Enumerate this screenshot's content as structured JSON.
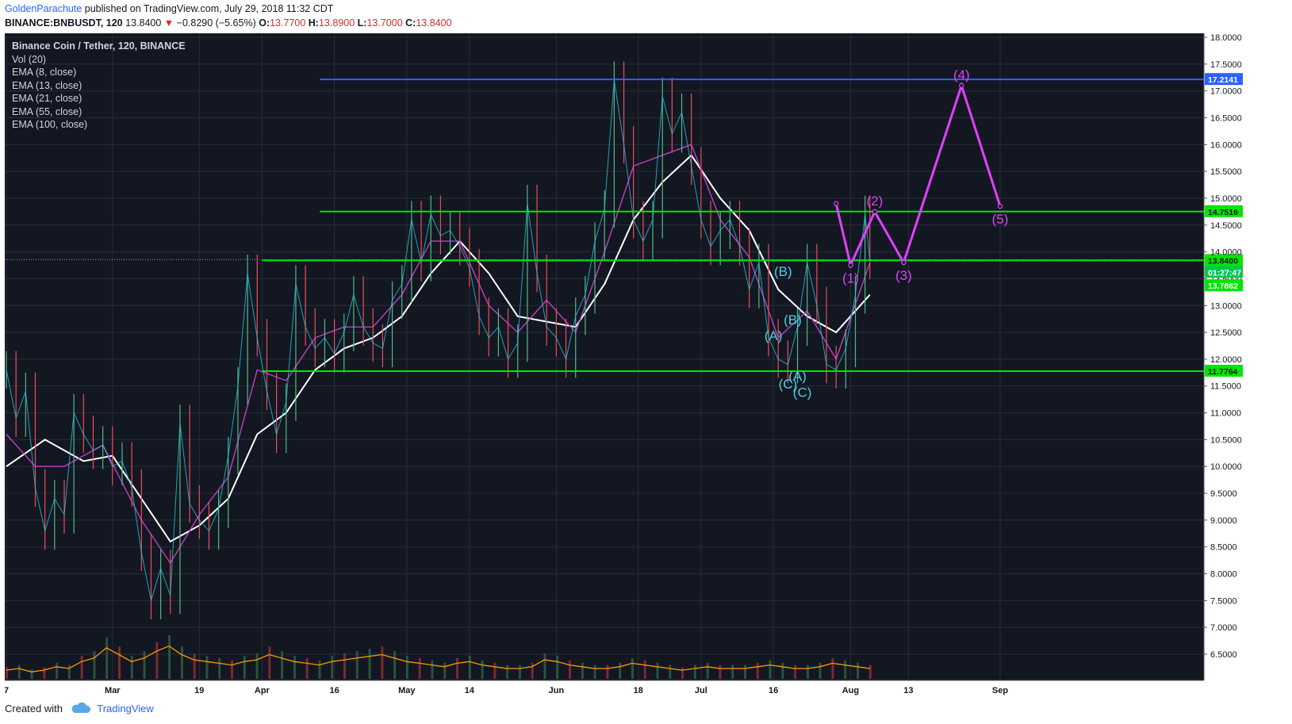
{
  "header": {
    "author": "GoldenParachute",
    "published": "published on TradingView.com, July 29, 2018 11:32 CDT",
    "symbol": "BINANCE:BNBUSDT, 120",
    "last": "13.8400",
    "change_arrow": "▼",
    "change": "−0.8290 (−5.65%)",
    "o_label": "O:",
    "o": "13.7700",
    "h_label": "H:",
    "h": "13.8900",
    "l_label": "L:",
    "l": "13.7000",
    "c_label": "C:",
    "c": "13.8400"
  },
  "legend": {
    "title": "Binance Coin / Tether, 120, BINANCE",
    "items": [
      "Vol (20)",
      "EMA (8, close)",
      "EMA (13, close)",
      "EMA (21, close)",
      "EMA (55, close)",
      "EMA (100, close)"
    ]
  },
  "footer": {
    "created_with": "Created with",
    "brand": "TradingView"
  },
  "colors": {
    "background": "#131722",
    "grid": "#2a2e39",
    "axis_text": "#d1d4dc",
    "level_green": "#00e600",
    "level_blue": "#2962ff",
    "wave_magenta": "#e040fb",
    "wave_cyan": "#4dd0e1",
    "ema_white": "#ffffff",
    "ema_magenta": "#c040c0",
    "volume_line": "#ff9800"
  },
  "chart_data": {
    "type": "line",
    "y_scale": "linear",
    "ylim": [
      6.5,
      18.0
    ],
    "yticks": [
      "18.0000",
      "17.5000",
      "17.0000",
      "16.5000",
      "16.0000",
      "15.5000",
      "15.0000",
      "14.5000",
      "14.0000",
      "13.5000",
      "13.0000",
      "12.5000",
      "12.0000",
      "11.5000",
      "11.0000",
      "10.5000",
      "10.0000",
      "9.5000",
      "9.0000",
      "8.5000",
      "8.0000",
      "7.5000",
      "7.0000",
      "6.5000"
    ],
    "xticks": [
      {
        "label": "7",
        "date": "2018-02-07"
      },
      {
        "label": "Mar",
        "date": "2018-03-01"
      },
      {
        "label": "19",
        "date": "2018-03-19"
      },
      {
        "label": "Apr",
        "date": "2018-04-01"
      },
      {
        "label": "16",
        "date": "2018-04-16"
      },
      {
        "label": "May",
        "date": "2018-05-01"
      },
      {
        "label": "14",
        "date": "2018-05-14"
      },
      {
        "label": "Jun",
        "date": "2018-06-01"
      },
      {
        "label": "18",
        "date": "2018-06-18"
      },
      {
        "label": "Jul",
        "date": "2018-07-01"
      },
      {
        "label": "16",
        "date": "2018-07-16"
      },
      {
        "label": "Aug",
        "date": "2018-08-01"
      },
      {
        "label": "13",
        "date": "2018-08-13"
      },
      {
        "label": "Sep",
        "date": "2018-09-01"
      }
    ],
    "price": {
      "name": "BNBUSDT",
      "points": [
        [
          "2018-02-07",
          11.8
        ],
        [
          "2018-02-09",
          10.9
        ],
        [
          "2018-02-11",
          11.4
        ],
        [
          "2018-02-13",
          9.6
        ],
        [
          "2018-02-15",
          8.8
        ],
        [
          "2018-02-17",
          9.4
        ],
        [
          "2018-02-19",
          9.1
        ],
        [
          "2018-02-21",
          11.0
        ],
        [
          "2018-02-23",
          10.6
        ],
        [
          "2018-02-25",
          10.3
        ],
        [
          "2018-02-27",
          10.4
        ],
        [
          "2018-03-01",
          10.0
        ],
        [
          "2018-03-03",
          10.1
        ],
        [
          "2018-03-05",
          9.6
        ],
        [
          "2018-03-07",
          8.4
        ],
        [
          "2018-03-09",
          7.5
        ],
        [
          "2018-03-11",
          8.1
        ],
        [
          "2018-03-13",
          7.6
        ],
        [
          "2018-03-15",
          10.8
        ],
        [
          "2018-03-17",
          9.3
        ],
        [
          "2018-03-19",
          9.0
        ],
        [
          "2018-03-21",
          8.8
        ],
        [
          "2018-03-23",
          9.2
        ],
        [
          "2018-03-25",
          10.2
        ],
        [
          "2018-03-27",
          11.5
        ],
        [
          "2018-03-29",
          13.6
        ],
        [
          "2018-03-31",
          12.4
        ],
        [
          "2018-04-02",
          11.4
        ],
        [
          "2018-04-04",
          10.6
        ],
        [
          "2018-04-06",
          11.2
        ],
        [
          "2018-04-08",
          13.4
        ],
        [
          "2018-04-10",
          12.6
        ],
        [
          "2018-04-12",
          12.2
        ],
        [
          "2018-04-14",
          12.4
        ],
        [
          "2018-04-16",
          12.1
        ],
        [
          "2018-04-18",
          12.5
        ],
        [
          "2018-04-20",
          13.2
        ],
        [
          "2018-04-22",
          12.6
        ],
        [
          "2018-04-24",
          12.3
        ],
        [
          "2018-04-26",
          12.2
        ],
        [
          "2018-04-28",
          13.1
        ],
        [
          "2018-04-30",
          13.4
        ],
        [
          "2018-05-02",
          14.6
        ],
        [
          "2018-05-04",
          13.8
        ],
        [
          "2018-05-06",
          14.7
        ],
        [
          "2018-05-08",
          14.3
        ],
        [
          "2018-05-10",
          14.4
        ],
        [
          "2018-05-12",
          14.1
        ],
        [
          "2018-05-14",
          13.7
        ],
        [
          "2018-05-16",
          12.8
        ],
        [
          "2018-05-18",
          12.4
        ],
        [
          "2018-05-20",
          12.6
        ],
        [
          "2018-05-22",
          12.0
        ],
        [
          "2018-05-24",
          12.3
        ],
        [
          "2018-05-26",
          14.9
        ],
        [
          "2018-05-28",
          13.6
        ],
        [
          "2018-05-30",
          12.6
        ],
        [
          "2018-06-01",
          12.4
        ],
        [
          "2018-06-03",
          12.0
        ],
        [
          "2018-06-05",
          12.8
        ],
        [
          "2018-06-07",
          13.2
        ],
        [
          "2018-06-09",
          14.2
        ],
        [
          "2018-06-11",
          14.8
        ],
        [
          "2018-06-13",
          17.2
        ],
        [
          "2018-06-15",
          16.0
        ],
        [
          "2018-06-17",
          14.6
        ],
        [
          "2018-06-19",
          14.2
        ],
        [
          "2018-06-21",
          14.6
        ],
        [
          "2018-06-23",
          16.9
        ],
        [
          "2018-06-25",
          16.2
        ],
        [
          "2018-06-27",
          16.6
        ],
        [
          "2018-06-29",
          15.6
        ],
        [
          "2018-07-01",
          14.6
        ],
        [
          "2018-07-03",
          14.1
        ],
        [
          "2018-07-05",
          14.4
        ],
        [
          "2018-07-07",
          14.6
        ],
        [
          "2018-07-09",
          14.1
        ],
        [
          "2018-07-11",
          13.3
        ],
        [
          "2018-07-13",
          13.8
        ],
        [
          "2018-07-15",
          12.4
        ],
        [
          "2018-07-17",
          12.0
        ],
        [
          "2018-07-19",
          11.9
        ],
        [
          "2018-07-21",
          12.6
        ],
        [
          "2018-07-23",
          13.8
        ],
        [
          "2018-07-25",
          13.0
        ],
        [
          "2018-07-27",
          11.9
        ],
        [
          "2018-07-29",
          11.8
        ],
        [
          "2018-07-31",
          12.2
        ],
        [
          "2018-08-02",
          13.2
        ],
        [
          "2018-08-04",
          14.7
        ],
        [
          "2018-08-05",
          13.84
        ]
      ]
    },
    "series": [
      {
        "name": "EMA (55, close)",
        "points": [
          [
            "2018-02-07",
            10.0
          ],
          [
            "2018-02-15",
            10.5
          ],
          [
            "2018-02-23",
            10.1
          ],
          [
            "2018-03-01",
            10.2
          ],
          [
            "2018-03-07",
            9.4
          ],
          [
            "2018-03-13",
            8.6
          ],
          [
            "2018-03-19",
            8.9
          ],
          [
            "2018-03-25",
            9.4
          ],
          [
            "2018-03-31",
            10.6
          ],
          [
            "2018-04-06",
            11.0
          ],
          [
            "2018-04-12",
            11.8
          ],
          [
            "2018-04-18",
            12.2
          ],
          [
            "2018-04-24",
            12.4
          ],
          [
            "2018-04-30",
            12.8
          ],
          [
            "2018-05-06",
            13.6
          ],
          [
            "2018-05-12",
            14.2
          ],
          [
            "2018-05-18",
            13.6
          ],
          [
            "2018-05-24",
            12.8
          ],
          [
            "2018-05-30",
            12.7
          ],
          [
            "2018-06-05",
            12.6
          ],
          [
            "2018-06-11",
            13.4
          ],
          [
            "2018-06-17",
            14.6
          ],
          [
            "2018-06-23",
            15.3
          ],
          [
            "2018-06-29",
            15.8
          ],
          [
            "2018-07-05",
            15.0
          ],
          [
            "2018-07-11",
            14.4
          ],
          [
            "2018-07-17",
            13.3
          ],
          [
            "2018-07-23",
            12.8
          ],
          [
            "2018-07-29",
            12.5
          ],
          [
            "2018-08-05",
            13.2
          ]
        ]
      },
      {
        "name": "EMA (21, close)",
        "points": [
          [
            "2018-02-07",
            10.6
          ],
          [
            "2018-02-13",
            10.0
          ],
          [
            "2018-02-19",
            10.0
          ],
          [
            "2018-02-27",
            10.4
          ],
          [
            "2018-03-07",
            9.0
          ],
          [
            "2018-03-13",
            8.2
          ],
          [
            "2018-03-19",
            9.1
          ],
          [
            "2018-03-25",
            9.8
          ],
          [
            "2018-03-31",
            11.8
          ],
          [
            "2018-04-06",
            11.6
          ],
          [
            "2018-04-12",
            12.4
          ],
          [
            "2018-04-18",
            12.6
          ],
          [
            "2018-04-24",
            12.6
          ],
          [
            "2018-04-30",
            13.2
          ],
          [
            "2018-05-06",
            14.2
          ],
          [
            "2018-05-12",
            14.2
          ],
          [
            "2018-05-18",
            13.0
          ],
          [
            "2018-05-24",
            12.5
          ],
          [
            "2018-05-30",
            13.1
          ],
          [
            "2018-06-05",
            12.5
          ],
          [
            "2018-06-11",
            14.0
          ],
          [
            "2018-06-17",
            15.6
          ],
          [
            "2018-06-23",
            15.8
          ],
          [
            "2018-06-29",
            16.0
          ],
          [
            "2018-07-05",
            14.6
          ],
          [
            "2018-07-11",
            13.9
          ],
          [
            "2018-07-17",
            12.4
          ],
          [
            "2018-07-23",
            12.9
          ],
          [
            "2018-07-29",
            12.0
          ],
          [
            "2018-08-05",
            13.8
          ]
        ]
      }
    ],
    "volume": {
      "name": "Vol (20)",
      "levels": [
        0.25,
        0.3,
        0.2,
        0.25,
        0.35,
        0.3,
        0.5,
        0.6,
        0.9,
        0.7,
        0.5,
        0.6,
        0.8,
        0.95,
        0.7,
        0.55,
        0.5,
        0.45,
        0.4,
        0.5,
        0.55,
        0.7,
        0.6,
        0.5,
        0.45,
        0.4,
        0.5,
        0.55,
        0.6,
        0.65,
        0.7,
        0.6,
        0.5,
        0.45,
        0.4,
        0.35,
        0.45,
        0.5,
        0.4,
        0.35,
        0.3,
        0.3,
        0.35,
        0.55,
        0.5,
        0.4,
        0.35,
        0.3,
        0.3,
        0.35,
        0.45,
        0.4,
        0.35,
        0.3,
        0.25,
        0.3,
        0.35,
        0.3,
        0.3,
        0.3,
        0.35,
        0.4,
        0.35,
        0.3,
        0.3,
        0.35,
        0.45,
        0.4,
        0.35,
        0.3
      ]
    },
    "levels": [
      {
        "name": "resistance",
        "price": 17.2141,
        "label": "17.2141",
        "color": "#2962ff",
        "from": "2018-04-13"
      },
      {
        "name": "upper",
        "price": 14.7516,
        "label": "14.7516",
        "color": "#00e600",
        "from": "2018-04-13"
      },
      {
        "name": "current",
        "price": 13.84,
        "label": "13.8400",
        "color": "#00e600",
        "from": "2018-04-01"
      },
      {
        "name": "support",
        "price": 11.7764,
        "label": "11.7764",
        "color": "#00e600",
        "from": "2018-04-01"
      }
    ],
    "price_tags": [
      {
        "label": "01:27:47",
        "price": 13.62,
        "bg": "#00c853"
      },
      {
        "label": "13.7862",
        "price": 13.37,
        "bg": "#00e600"
      }
    ],
    "wave_projection": {
      "color": "#e040fb",
      "points": [
        {
          "date": "2018-07-29",
          "price": 14.9,
          "label": ""
        },
        {
          "date": "2018-08-01",
          "price": 13.75,
          "label": "(1)"
        },
        {
          "date": "2018-08-06",
          "price": 14.75,
          "label": "(2)"
        },
        {
          "date": "2018-08-12",
          "price": 13.8,
          "label": "(3)"
        },
        {
          "date": "2018-08-24",
          "price": 17.1,
          "label": "(4)"
        },
        {
          "date": "2018-09-01",
          "price": 14.85,
          "label": "(5)"
        }
      ]
    },
    "wave_labels": [
      {
        "text": "(B)",
        "date": "2018-07-18",
        "price": 13.55,
        "color": "#4dd0e1"
      },
      {
        "text": "(A)",
        "date": "2018-07-16",
        "price": 12.35,
        "color": "#4dd0e1"
      },
      {
        "text": "(B)",
        "date": "2018-07-20",
        "price": 12.65,
        "color": "#4dd0e1"
      },
      {
        "text": "(A)",
        "date": "2018-07-21",
        "price": 11.6,
        "color": "#4dd0e1"
      },
      {
        "text": "(C)",
        "date": "2018-07-19",
        "price": 11.45,
        "color": "#4dd0e1"
      },
      {
        "text": "(C)",
        "date": "2018-07-22",
        "price": 11.3,
        "color": "#4dd0e1"
      }
    ]
  }
}
